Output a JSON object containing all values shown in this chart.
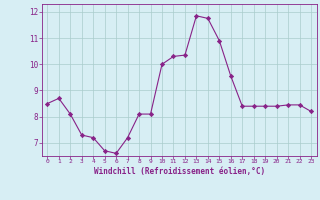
{
  "x": [
    0,
    1,
    2,
    3,
    4,
    5,
    6,
    7,
    8,
    9,
    10,
    11,
    12,
    13,
    14,
    15,
    16,
    17,
    18,
    19,
    20,
    21,
    22,
    23
  ],
  "y": [
    8.5,
    8.7,
    8.1,
    7.3,
    7.2,
    6.7,
    6.6,
    7.2,
    8.1,
    8.1,
    10.0,
    10.3,
    10.35,
    11.85,
    11.75,
    10.9,
    9.55,
    8.4,
    8.4,
    8.4,
    8.4,
    8.45,
    8.45,
    8.2
  ],
  "line_color": "#882288",
  "marker": "D",
  "marker_size": 2.2,
  "bg_color": "#d7eef4",
  "grid_color": "#aacccc",
  "xlabel": "Windchill (Refroidissement éolien,°C)",
  "xlabel_color": "#882288",
  "tick_color": "#882288",
  "ylim": [
    6.5,
    12.3
  ],
  "yticks": [
    7,
    8,
    9,
    10,
    11,
    12
  ],
  "xlim": [
    -0.5,
    23.5
  ],
  "xticks": [
    0,
    1,
    2,
    3,
    4,
    5,
    6,
    7,
    8,
    9,
    10,
    11,
    12,
    13,
    14,
    15,
    16,
    17,
    18,
    19,
    20,
    21,
    22,
    23
  ]
}
